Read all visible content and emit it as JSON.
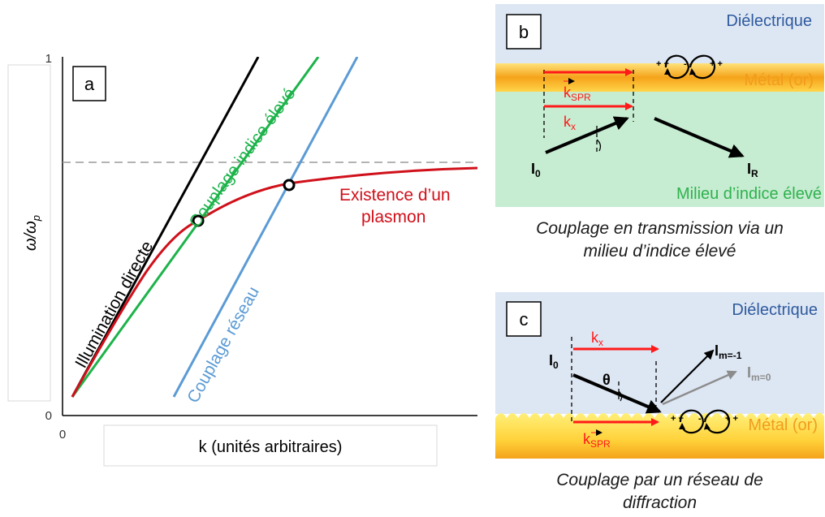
{
  "panel_a": {
    "label": "a",
    "y_axis_label": "ω/ω",
    "y_axis_sub": "p",
    "x_axis_label": "k (unités arbitraires)",
    "y_tick_top": "1",
    "y_tick_bottom": "0",
    "x_tick_origin": "0",
    "line_labels": {
      "direct": "Illumination directe",
      "high_index": "Couplage indice élevé",
      "grating": "Couplage réseau",
      "plasmon_line1": "Existence d’un",
      "plasmon_line2": "plasmon"
    },
    "colors": {
      "direct": "#000000",
      "high_index": "#1db34a",
      "grating": "#5b9bd5",
      "plasmon": "#d0101a",
      "asymptote": "#9a9a9a"
    }
  },
  "panel_b": {
    "label": "b",
    "dielectric": "Diélectrique",
    "metal": "Métal (or)",
    "medium": "Milieu d’indice élevé",
    "k_spr": "k",
    "k_spr_sub": "SPR",
    "k_x": "k",
    "k_x_sub": "x",
    "i0": "I",
    "i0_sub": "0",
    "ir": "I",
    "ir_sub": "R",
    "charges_left": "+ +",
    "charges_mid": "- -",
    "charges_right": "+ +",
    "caption_line1": "Couplage en transmission via un",
    "caption_line2": "milieu d’indice élevé",
    "colors": {
      "dielectric": "#dde6f3",
      "metal_top": "#ffd54a",
      "metal_mid": "#f7a51c",
      "medium": "#c6ecd1",
      "label_blue": "#2e5a9e",
      "label_orange": "#f29b1e",
      "label_green": "#2fb24e",
      "arrow_red": "#ff1a1a"
    }
  },
  "panel_c": {
    "label": "c",
    "dielectric": "Diélectrique",
    "metal": "Métal (or)",
    "k_x": "k",
    "k_x_sub": "x",
    "k_spr": "k",
    "k_spr_sub": "SPR",
    "i0": "I",
    "i0_sub": "0",
    "theta": "θ",
    "im1": "I",
    "im1_sub": "m=-1",
    "im0": "I",
    "im0_sub": "m=0",
    "charges_left": "+ +",
    "charges_mid": "- -",
    "charges_right": "+ +",
    "caption_line1": "Couplage par un réseau de",
    "caption_line2": "diffraction"
  }
}
